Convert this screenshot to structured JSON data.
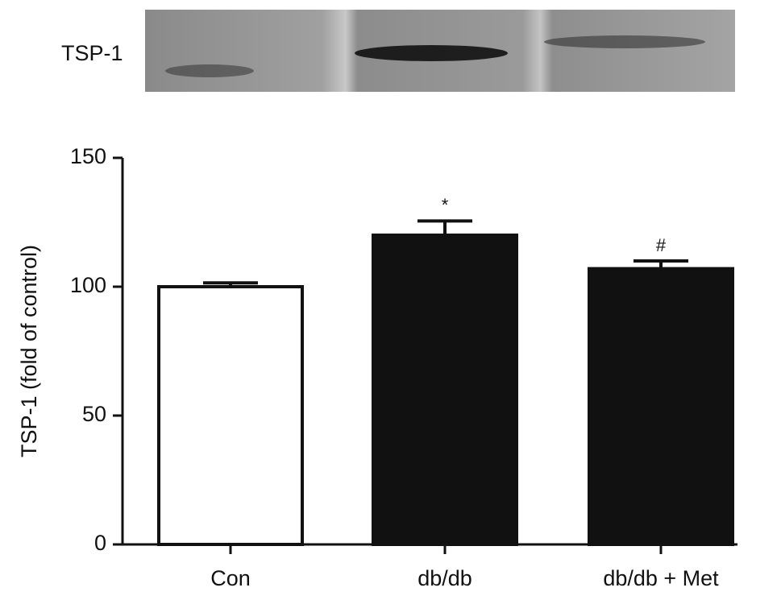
{
  "blot": {
    "label": "TSP-1"
  },
  "chart_data": {
    "type": "bar",
    "ylabel": "TSP-1 (fold of control)",
    "categories": [
      "Con",
      "db/db",
      "db/db + Met"
    ],
    "values": [
      100,
      120,
      107
    ],
    "errors": [
      1.5,
      5.5,
      3
    ],
    "value_annotations": [
      null,
      "*",
      "#"
    ],
    "colors": [
      "#ffffff",
      "#111111",
      "#111111"
    ],
    "ylim": [
      0,
      150
    ],
    "yticks": [
      0,
      50,
      100,
      150
    ]
  }
}
